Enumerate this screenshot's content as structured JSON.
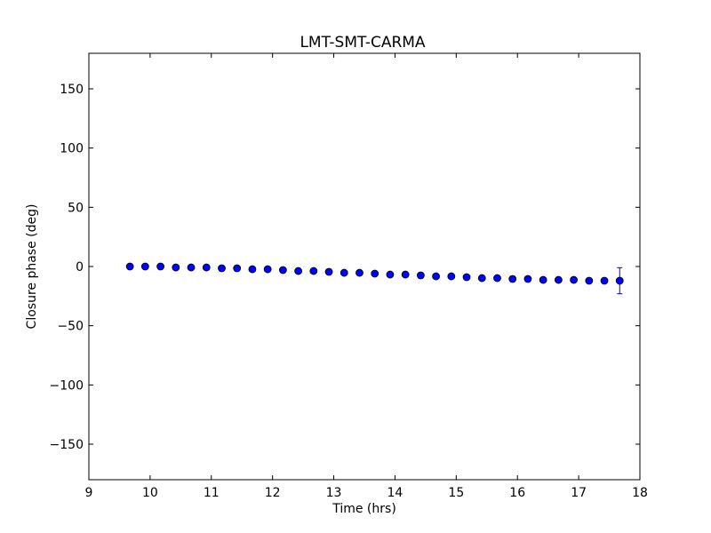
{
  "chart_data": {
    "type": "scatter",
    "title": "LMT-SMT-CARMA",
    "xlabel": "Time (hrs)",
    "ylabel": "Closure phase (deg)",
    "xlim": [
      9,
      18
    ],
    "ylim": [
      -180,
      180
    ],
    "xticks": [
      9,
      10,
      11,
      12,
      13,
      14,
      15,
      16,
      17,
      18
    ],
    "xtick_labels": [
      "9",
      "10",
      "11",
      "12",
      "13",
      "14",
      "15",
      "16",
      "17",
      "18"
    ],
    "yticks": [
      150,
      100,
      50,
      0,
      -50,
      -100,
      -150
    ],
    "ytick_labels": [
      "150",
      "100",
      "50",
      "0",
      "−50",
      "−100",
      "−150"
    ],
    "grid": false,
    "marker_color": "#0000ff",
    "series": [
      {
        "x": [
          9.67,
          9.92,
          10.17,
          10.42,
          10.67,
          10.92,
          11.17,
          11.42,
          11.67,
          11.92,
          12.17,
          12.42,
          12.67,
          12.92,
          13.17,
          13.42,
          13.67,
          13.92,
          14.17,
          14.42,
          14.67,
          14.92,
          15.17,
          15.42,
          15.67,
          15.92,
          16.17,
          16.42,
          16.67,
          16.92,
          17.17,
          17.42,
          17.67
        ],
        "y": [
          0.0,
          0.0,
          0.0,
          -0.8,
          -0.8,
          -0.8,
          -1.5,
          -1.5,
          -2.3,
          -2.3,
          -3.0,
          -3.8,
          -3.8,
          -4.5,
          -5.3,
          -5.3,
          -6.0,
          -6.8,
          -6.8,
          -7.5,
          -8.3,
          -8.3,
          -9.0,
          -9.8,
          -9.8,
          -10.5,
          -10.5,
          -11.3,
          -11.3,
          -11.3,
          -12.0,
          -12.0,
          -12.0
        ],
        "yerr": [
          0.5,
          0.5,
          0.5,
          0.5,
          0.5,
          0.5,
          0.5,
          0.5,
          0.5,
          0.5,
          0.5,
          0.5,
          0.5,
          0.5,
          0.5,
          0.5,
          0.5,
          0.5,
          0.5,
          0.5,
          0.5,
          0.5,
          0.5,
          0.5,
          0.5,
          0.5,
          0.5,
          0.5,
          0.5,
          0.5,
          0.5,
          0.5,
          11.0
        ]
      }
    ]
  }
}
